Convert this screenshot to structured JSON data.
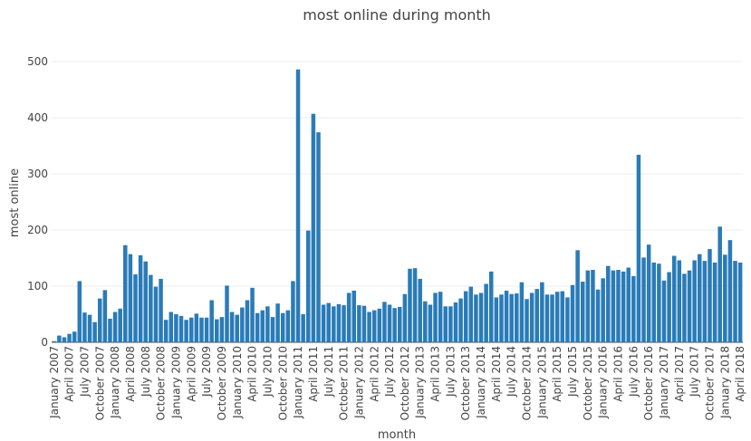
{
  "chart_data": {
    "type": "bar",
    "title": "most online during month",
    "xlabel": "month",
    "ylabel": "most online",
    "ylim": [
      0,
      510
    ],
    "yticks": [
      0,
      100,
      200,
      300,
      400,
      500
    ],
    "grid": true,
    "start_month": "January 2007",
    "end_month": "April 2018",
    "color": "#2a7bb8",
    "values": [
      2,
      12,
      9,
      15,
      19,
      109,
      53,
      49,
      36,
      78,
      93,
      42,
      54,
      60,
      173,
      157,
      121,
      155,
      144,
      120,
      99,
      113,
      40,
      54,
      50,
      47,
      40,
      44,
      51,
      44,
      44,
      75,
      41,
      45,
      101,
      54,
      49,
      62,
      75,
      97,
      52,
      57,
      64,
      45,
      69,
      52,
      57,
      109,
      486,
      50,
      199,
      407,
      374,
      67,
      70,
      64,
      68,
      66,
      88,
      92,
      66,
      65,
      54,
      57,
      60,
      72,
      67,
      61,
      63,
      86,
      131,
      132,
      113,
      73,
      67,
      88,
      90,
      64,
      64,
      71,
      78,
      91,
      99,
      85,
      88,
      104,
      126,
      80,
      85,
      92,
      86,
      87,
      107,
      77,
      88,
      95,
      107,
      85,
      85,
      90,
      91,
      80,
      102,
      164,
      108,
      128,
      129,
      94,
      114,
      136,
      128,
      129,
      126,
      133,
      118,
      334,
      151,
      174,
      142,
      140,
      110,
      125,
      154,
      146,
      122,
      128,
      146,
      157,
      145,
      166,
      142,
      206,
      156,
      182,
      145,
      142
    ]
  }
}
